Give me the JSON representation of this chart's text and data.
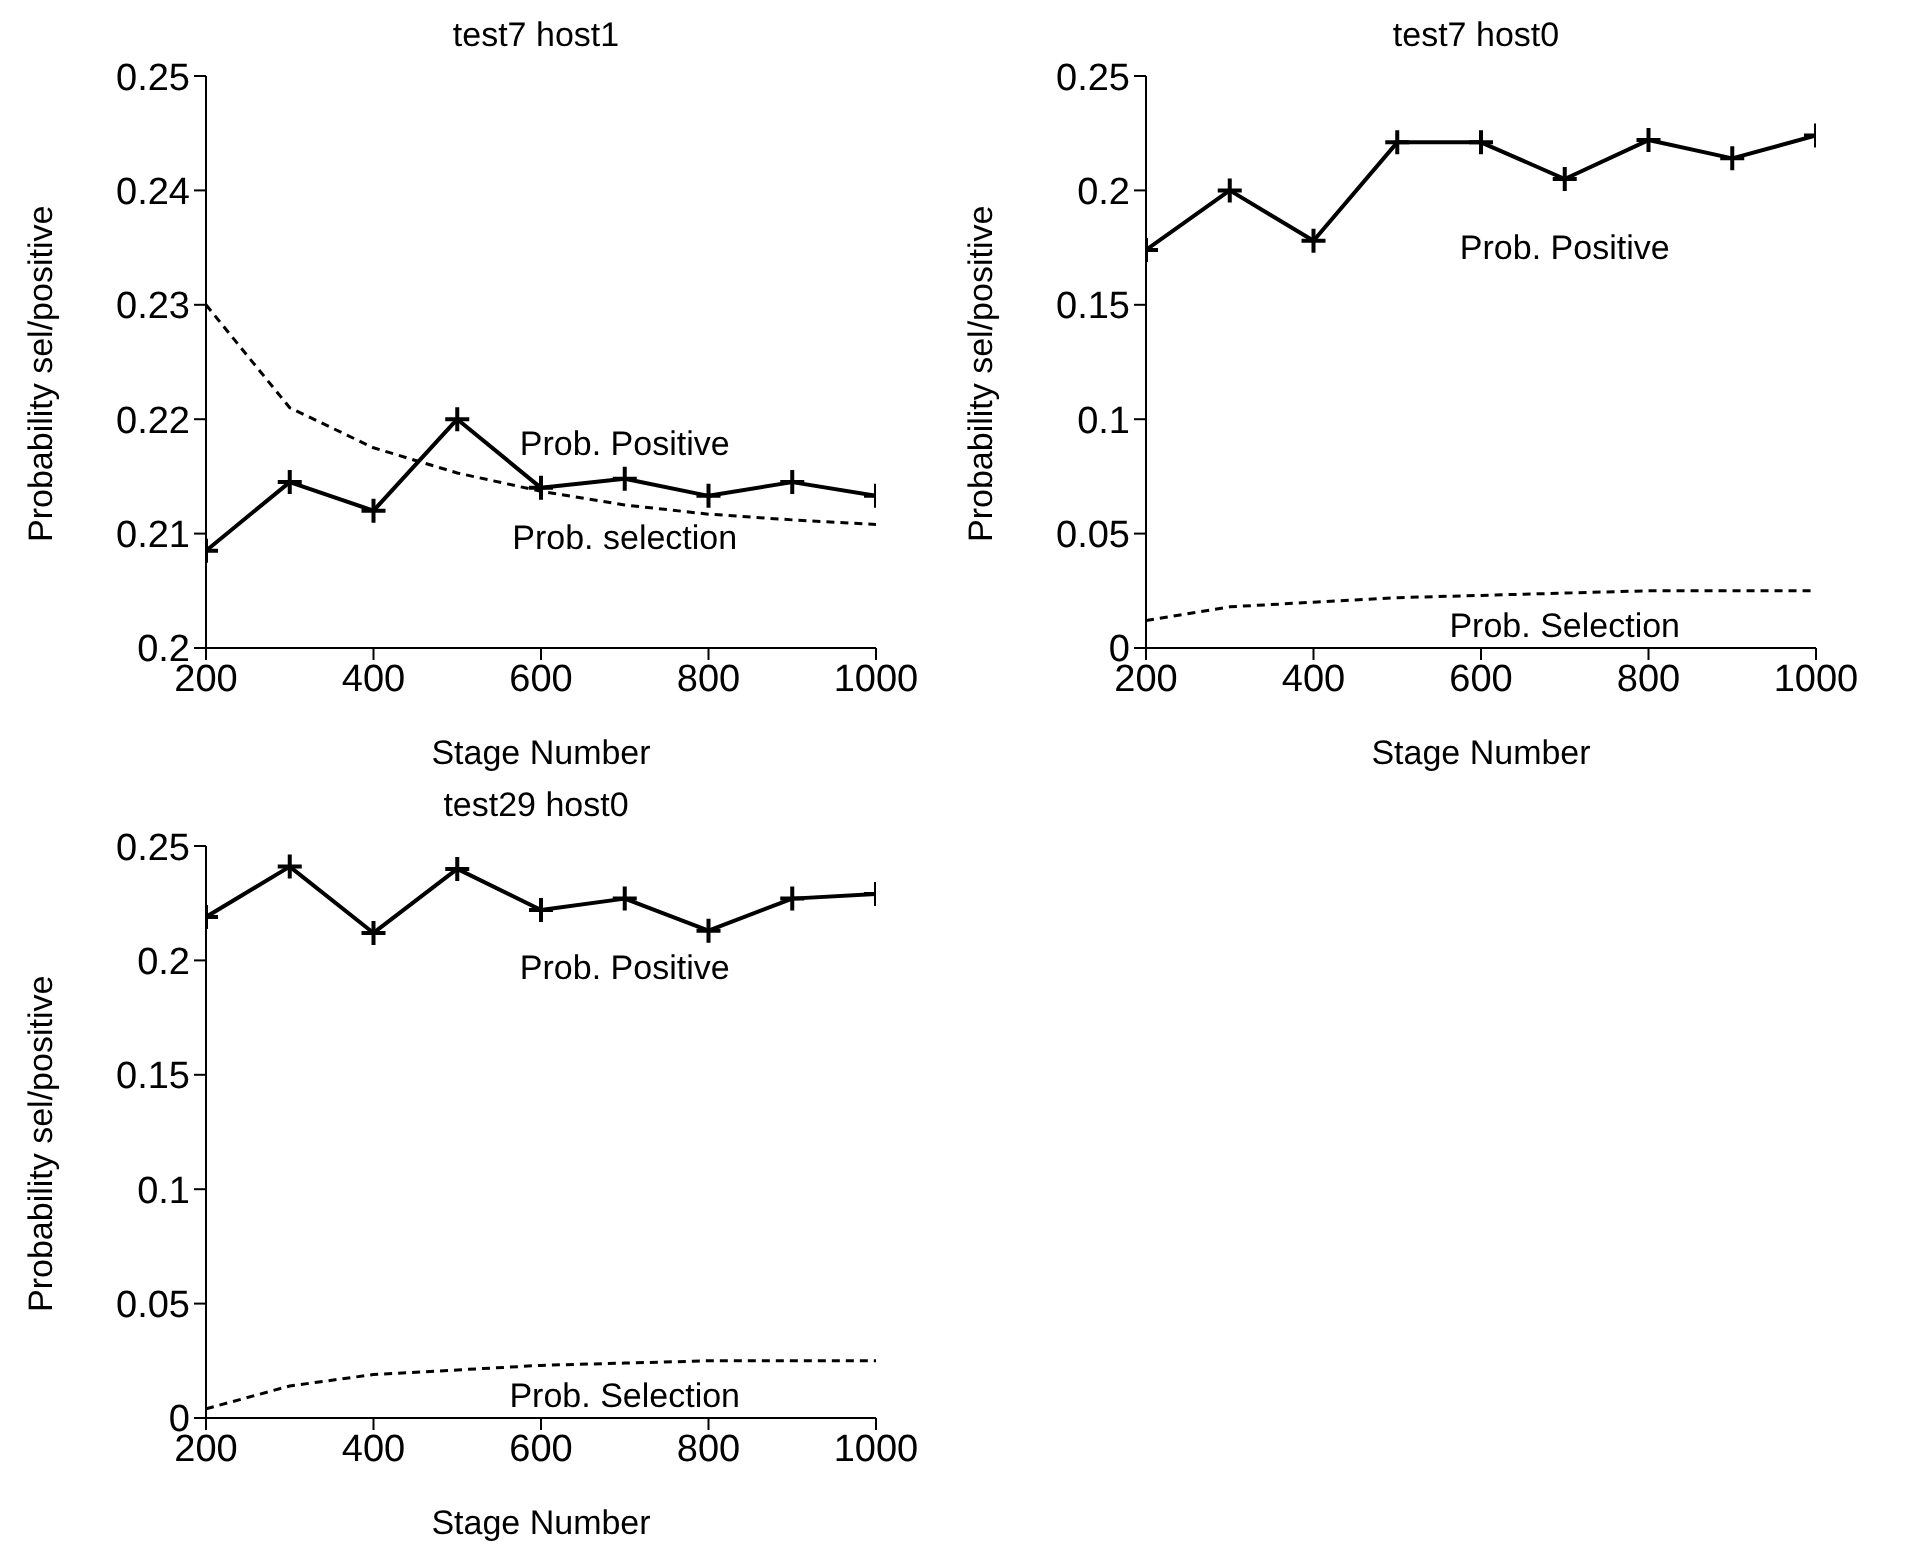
{
  "chart_data": [
    {
      "type": "line",
      "title": "test7 host1",
      "xlabel": "Stage Number",
      "ylabel": "Probability sel/positive",
      "x": [
        200,
        300,
        400,
        500,
        600,
        700,
        800,
        900,
        1000
      ],
      "xlim": [
        200,
        1000
      ],
      "xticks": [
        200,
        400,
        600,
        800,
        1000
      ],
      "ylim": [
        0.2,
        0.25
      ],
      "yticks": [
        0.2,
        0.21,
        0.22,
        0.23,
        0.24,
        0.25
      ],
      "grid": false,
      "legend": false,
      "series": [
        {
          "name": "Prob. Positive",
          "color": "#000000",
          "marker": "cross",
          "line_style": "solid",
          "values": [
            0.2085,
            0.2145,
            0.212,
            0.22,
            0.214,
            0.2148,
            0.2133,
            0.2145,
            0.2133
          ]
        },
        {
          "name": "Prob. selection",
          "color": "#000000",
          "marker": "none",
          "line_style": "dashed",
          "values": [
            0.23,
            0.221,
            0.2175,
            0.2153,
            0.2137,
            0.2125,
            0.2117,
            0.2112,
            0.2108
          ]
        }
      ]
    },
    {
      "type": "line",
      "title": "test7 host0",
      "xlabel": "Stage Number",
      "ylabel": "Probability sel/positive",
      "x": [
        200,
        300,
        400,
        500,
        600,
        700,
        800,
        900,
        1000
      ],
      "xlim": [
        200,
        1000
      ],
      "xticks": [
        200,
        400,
        600,
        800,
        1000
      ],
      "ylim": [
        0,
        0.25
      ],
      "yticks": [
        0,
        0.05,
        0.1,
        0.15,
        0.2,
        0.25
      ],
      "grid": false,
      "legend": false,
      "series": [
        {
          "name": "Prob. Positive",
          "color": "#000000",
          "marker": "cross",
          "line_style": "solid",
          "values": [
            0.174,
            0.2,
            0.178,
            0.221,
            0.221,
            0.205,
            0.222,
            0.214,
            0.224
          ]
        },
        {
          "name": "Prob. Selection",
          "color": "#000000",
          "marker": "none",
          "line_style": "dashed",
          "values": [
            0.012,
            0.018,
            0.02,
            0.022,
            0.023,
            0.024,
            0.025,
            0.025,
            0.025
          ]
        }
      ]
    },
    {
      "type": "line",
      "title": "test29 host0",
      "xlabel": "Stage Number",
      "ylabel": "Probability sel/positive",
      "x": [
        200,
        300,
        400,
        500,
        600,
        700,
        800,
        900,
        1000
      ],
      "xlim": [
        200,
        1000
      ],
      "xticks": [
        200,
        400,
        600,
        800,
        1000
      ],
      "ylim": [
        0,
        0.25
      ],
      "yticks": [
        0,
        0.05,
        0.1,
        0.15,
        0.2,
        0.25
      ],
      "grid": false,
      "legend": false,
      "series": [
        {
          "name": "Prob. Positive",
          "color": "#000000",
          "marker": "cross",
          "line_style": "solid",
          "values": [
            0.219,
            0.241,
            0.212,
            0.24,
            0.222,
            0.227,
            0.213,
            0.227,
            0.229
          ]
        },
        {
          "name": "Prob. Selection",
          "color": "#000000",
          "marker": "none",
          "line_style": "dashed",
          "values": [
            0.004,
            0.014,
            0.019,
            0.021,
            0.023,
            0.024,
            0.025,
            0.025,
            0.025
          ]
        }
      ]
    }
  ]
}
